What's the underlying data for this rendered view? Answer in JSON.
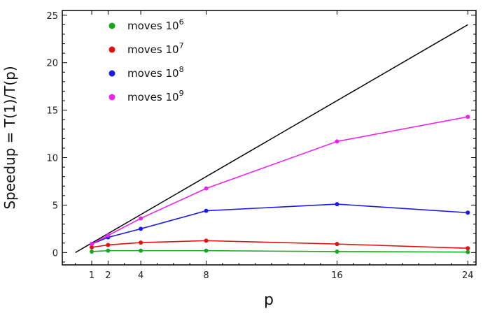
{
  "chart_data": {
    "type": "line",
    "title": "",
    "xlabel": "p",
    "ylabel": "Speedup = T(1)/T(p)",
    "xlim": [
      -0.8,
      24.5
    ],
    "ylim": [
      -1.3,
      25.5
    ],
    "xticks": [
      1,
      2,
      4,
      8,
      16,
      24
    ],
    "yticks": [
      0,
      5,
      10,
      15,
      20,
      25
    ],
    "legend_position": "top-left",
    "grid": false,
    "ideal_line": {
      "x": [
        0,
        24
      ],
      "y": [
        0,
        24
      ],
      "color": "#000000"
    },
    "series": [
      {
        "name": "moves 10",
        "exponent": "6",
        "color": "#16a81c",
        "x": [
          1,
          2,
          4,
          8,
          16,
          24
        ],
        "y": [
          0.1,
          0.2,
          0.2,
          0.2,
          0.1,
          0.05
        ]
      },
      {
        "name": "moves 10",
        "exponent": "7",
        "color": "#e01010",
        "x": [
          1,
          2,
          4,
          8,
          16,
          24
        ],
        "y": [
          0.55,
          0.8,
          1.05,
          1.25,
          0.9,
          0.45
        ]
      },
      {
        "name": "moves 10",
        "exponent": "8",
        "color": "#1a1ae6",
        "x": [
          1,
          2,
          4,
          8,
          16,
          24
        ],
        "y": [
          0.9,
          1.6,
          2.5,
          4.4,
          5.1,
          4.2
        ]
      },
      {
        "name": "moves 10",
        "exponent": "9",
        "color": "#ee22ee",
        "x": [
          1,
          2,
          4,
          8,
          16,
          24
        ],
        "y": [
          0.9,
          1.8,
          3.6,
          6.75,
          11.7,
          14.3
        ]
      }
    ]
  }
}
